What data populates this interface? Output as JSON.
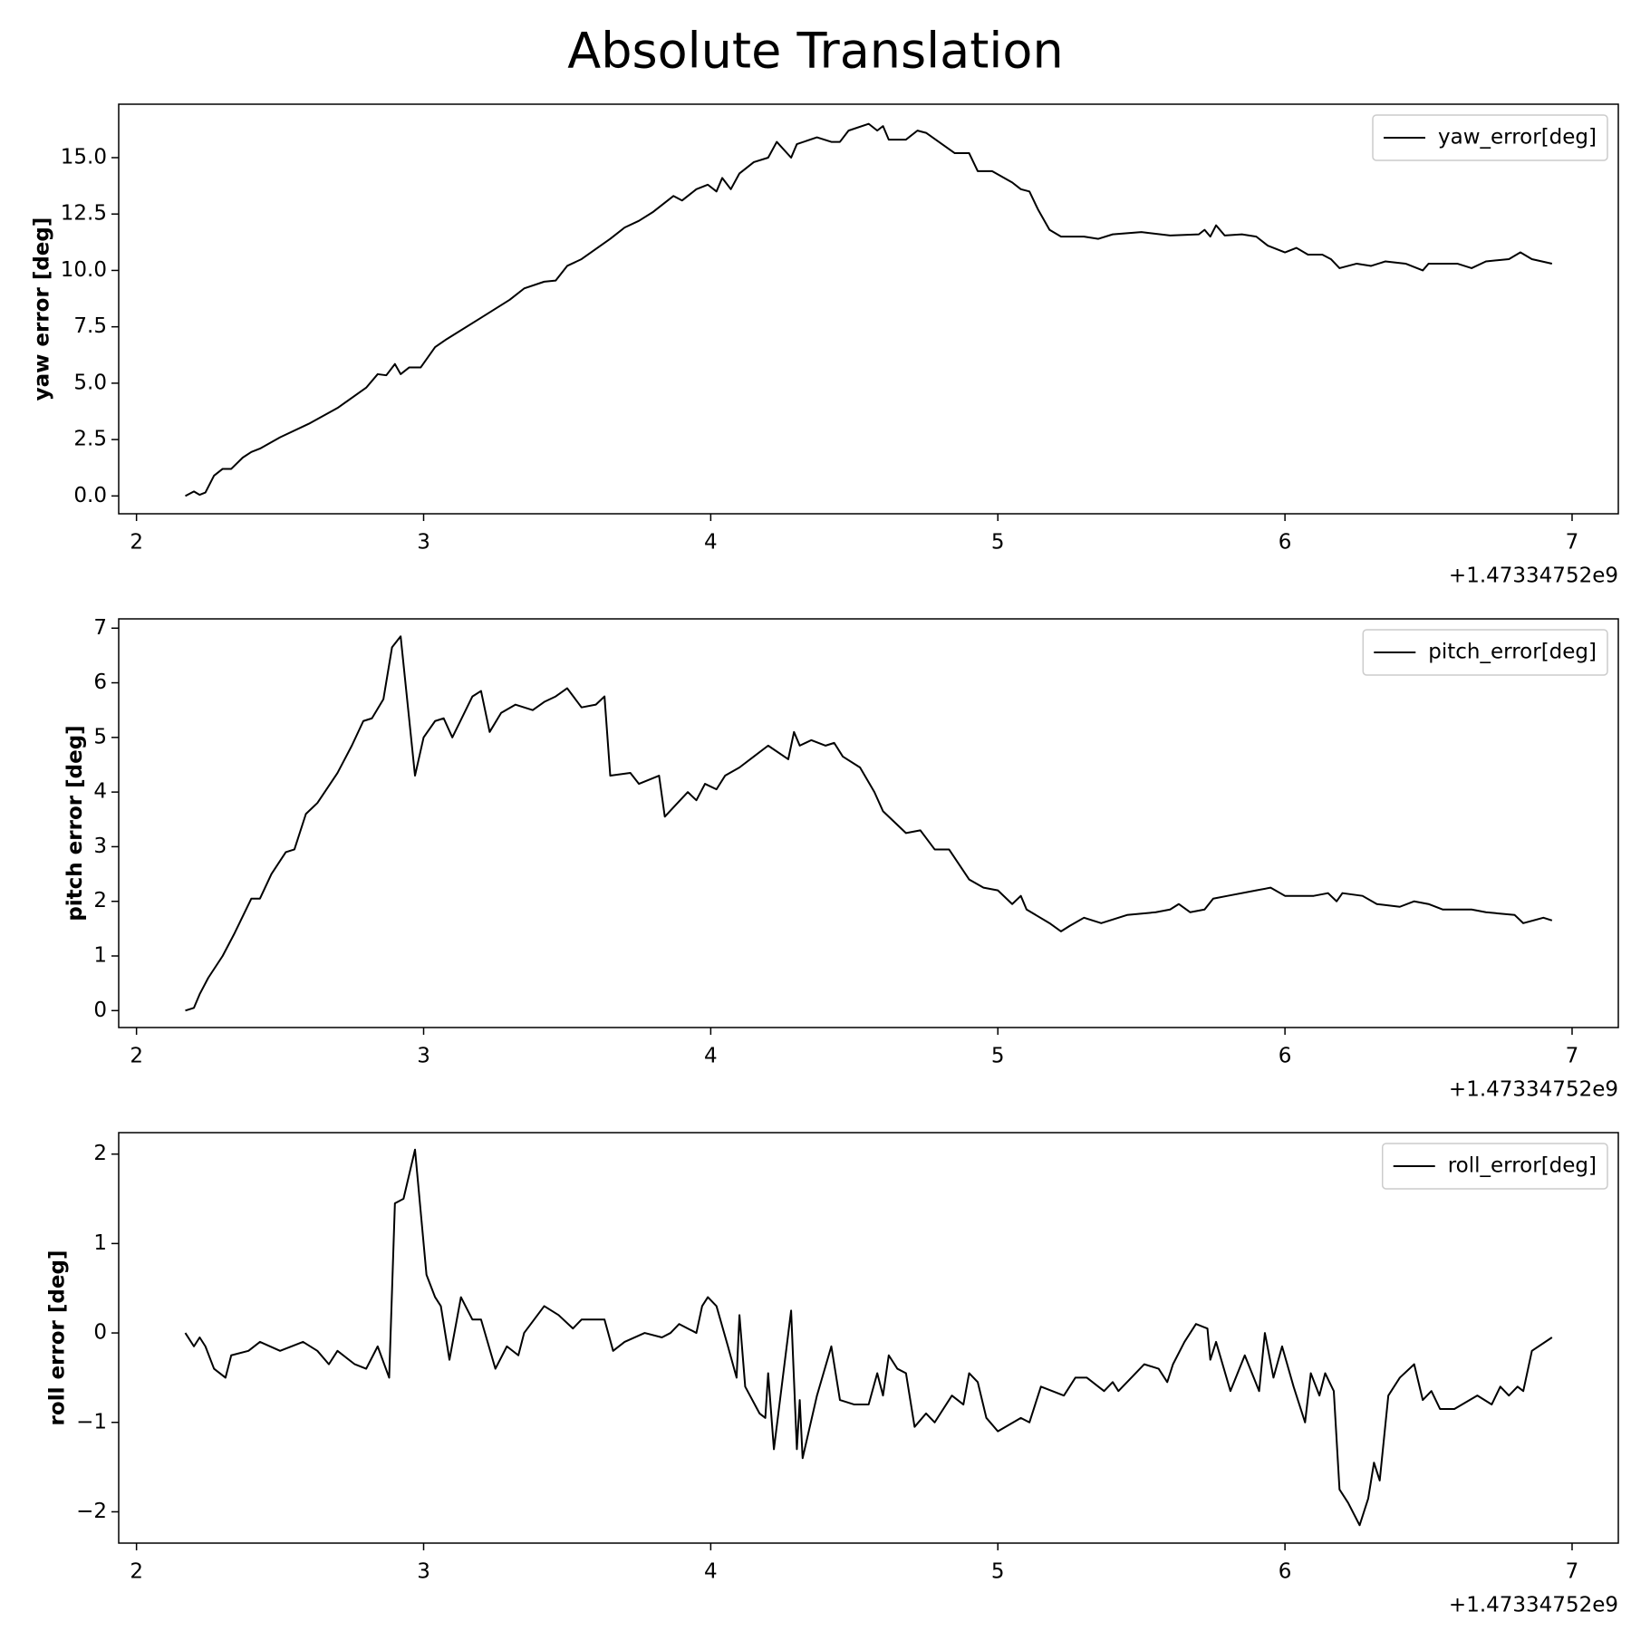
{
  "title": "Absolute Translation",
  "chart_data": [
    {
      "type": "line",
      "ylabel": "yaw error [deg]",
      "x_offset_label": "+1.47334752e9",
      "xlim": [
        1.938,
        7.161
      ],
      "xticks": [
        2,
        3,
        4,
        5,
        6,
        7
      ],
      "ylim": [
        -0.79,
        17.37
      ],
      "yticks": [
        {
          "value": 0,
          "label": "0.0"
        },
        {
          "value": 2.5,
          "label": "2.5"
        },
        {
          "value": 5,
          "label": "5.0"
        },
        {
          "value": 7.5,
          "label": "7.5"
        },
        {
          "value": 10,
          "label": "10.0"
        },
        {
          "value": 12.5,
          "label": "12.5"
        },
        {
          "value": 15,
          "label": "15.0"
        }
      ],
      "legend": "upper right",
      "x": [
        2.17,
        2.2,
        2.22,
        2.24,
        2.27,
        2.3,
        2.33,
        2.37,
        2.4,
        2.43,
        2.5,
        2.6,
        2.7,
        2.8,
        2.84,
        2.87,
        2.9,
        2.92,
        2.95,
        2.99,
        3.04,
        3.08,
        3.2,
        3.3,
        3.35,
        3.42,
        3.46,
        3.5,
        3.55,
        3.65,
        3.7,
        3.75,
        3.8,
        3.87,
        3.9,
        3.95,
        3.99,
        4.02,
        4.04,
        4.07,
        4.1,
        4.15,
        4.2,
        4.23,
        4.28,
        4.3,
        4.37,
        4.42,
        4.45,
        4.48,
        4.55,
        4.58,
        4.6,
        4.62,
        4.68,
        4.72,
        4.75,
        4.85,
        4.9,
        4.93,
        4.98,
        5.05,
        5.08,
        5.11,
        5.14,
        5.18,
        5.22,
        5.3,
        5.35,
        5.4,
        5.5,
        5.6,
        5.7,
        5.72,
        5.74,
        5.76,
        5.79,
        5.85,
        5.9,
        5.94,
        6.0,
        6.04,
        6.08,
        6.13,
        6.16,
        6.19,
        6.25,
        6.3,
        6.35,
        6.42,
        6.48,
        6.5,
        6.6,
        6.65,
        6.7,
        6.78,
        6.82,
        6.86,
        6.93
      ],
      "series": [
        {
          "name": "yaw_error[deg]",
          "color": "#000000",
          "values": [
            0,
            0.2,
            0.05,
            0.15,
            0.9,
            1.2,
            1.2,
            1.7,
            1.95,
            2.1,
            2.6,
            3.2,
            3.9,
            4.8,
            5.4,
            5.35,
            5.85,
            5.4,
            5.7,
            5.7,
            6.6,
            6.95,
            7.9,
            8.7,
            9.2,
            9.5,
            9.55,
            10.2,
            10.5,
            11.4,
            11.9,
            12.2,
            12.6,
            13.3,
            13.1,
            13.6,
            13.8,
            13.5,
            14.1,
            13.6,
            14.3,
            14.8,
            15.0,
            15.7,
            15.0,
            15.6,
            15.9,
            15.7,
            15.7,
            16.2,
            16.5,
            16.2,
            16.4,
            15.8,
            15.8,
            16.2,
            16.1,
            15.2,
            15.2,
            14.4,
            14.4,
            13.9,
            13.6,
            13.5,
            12.7,
            11.8,
            11.5,
            11.5,
            11.4,
            11.6,
            11.7,
            11.55,
            11.6,
            11.8,
            11.5,
            12.0,
            11.55,
            11.6,
            11.5,
            11.1,
            10.8,
            11.0,
            10.7,
            10.7,
            10.5,
            10.1,
            10.3,
            10.2,
            10.4,
            10.3,
            10.0,
            10.3,
            10.3,
            10.1,
            10.4,
            10.5,
            10.8,
            10.5,
            10.3
          ]
        }
      ]
    },
    {
      "type": "line",
      "ylabel": "pitch error [deg]",
      "x_offset_label": "+1.47334752e9",
      "xlim": [
        1.938,
        7.161
      ],
      "xticks": [
        2,
        3,
        4,
        5,
        6,
        7
      ],
      "ylim": [
        -0.31,
        7.17
      ],
      "yticks": [
        0,
        1,
        2,
        3,
        4,
        5,
        6,
        7
      ],
      "legend": "upper right",
      "x": [
        2.17,
        2.2,
        2.22,
        2.25,
        2.3,
        2.34,
        2.4,
        2.43,
        2.47,
        2.52,
        2.55,
        2.59,
        2.63,
        2.7,
        2.75,
        2.79,
        2.82,
        2.86,
        2.89,
        2.92,
        2.97,
        3.0,
        3.04,
        3.07,
        3.1,
        3.17,
        3.2,
        3.23,
        3.27,
        3.32,
        3.38,
        3.42,
        3.46,
        3.5,
        3.55,
        3.6,
        3.63,
        3.65,
        3.72,
        3.75,
        3.82,
        3.84,
        3.92,
        3.95,
        3.98,
        4.02,
        4.05,
        4.1,
        4.15,
        4.2,
        4.27,
        4.29,
        4.31,
        4.35,
        4.4,
        4.43,
        4.46,
        4.52,
        4.57,
        4.6,
        4.68,
        4.73,
        4.78,
        4.83,
        4.9,
        4.95,
        5.0,
        5.05,
        5.08,
        5.1,
        5.18,
        5.22,
        5.25,
        5.3,
        5.36,
        5.45,
        5.55,
        5.6,
        5.63,
        5.67,
        5.72,
        5.75,
        5.8,
        5.9,
        5.95,
        6.0,
        6.1,
        6.15,
        6.18,
        6.2,
        6.27,
        6.32,
        6.4,
        6.45,
        6.5,
        6.55,
        6.65,
        6.7,
        6.8,
        6.83,
        6.9,
        6.93
      ],
      "series": [
        {
          "name": "pitch_error[deg]",
          "color": "#000000",
          "values": [
            0,
            0.05,
            0.3,
            0.6,
            1.0,
            1.4,
            2.05,
            2.05,
            2.5,
            2.9,
            2.95,
            3.6,
            3.8,
            4.35,
            4.85,
            5.3,
            5.35,
            5.7,
            6.65,
            6.85,
            4.3,
            5.0,
            5.3,
            5.35,
            5.0,
            5.75,
            5.85,
            5.1,
            5.45,
            5.6,
            5.5,
            5.65,
            5.75,
            5.9,
            5.55,
            5.6,
            5.75,
            4.3,
            4.35,
            4.15,
            4.3,
            3.55,
            4.0,
            3.85,
            4.15,
            4.05,
            4.3,
            4.45,
            4.65,
            4.85,
            4.6,
            5.1,
            4.85,
            4.95,
            4.85,
            4.9,
            4.65,
            4.45,
            4.0,
            3.65,
            3.25,
            3.3,
            2.95,
            2.95,
            2.4,
            2.25,
            2.2,
            1.95,
            2.1,
            1.85,
            1.6,
            1.45,
            1.55,
            1.7,
            1.6,
            1.75,
            1.8,
            1.85,
            1.95,
            1.8,
            1.85,
            2.05,
            2.1,
            2.2,
            2.25,
            2.1,
            2.1,
            2.15,
            2.0,
            2.15,
            2.1,
            1.95,
            1.9,
            2.0,
            1.95,
            1.85,
            1.85,
            1.8,
            1.75,
            1.6,
            1.7,
            1.65
          ]
        }
      ]
    },
    {
      "type": "line",
      "ylabel": "roll error [deg]",
      "x_offset_label": "+1.47334752e9",
      "xlim": [
        1.938,
        7.161
      ],
      "xticks": [
        2,
        3,
        4,
        5,
        6,
        7
      ],
      "ylim": [
        -2.35,
        2.24
      ],
      "yticks": [
        {
          "value": -2,
          "label": "−2"
        },
        {
          "value": -1,
          "label": "−1"
        },
        0,
        1,
        2
      ],
      "legend": "upper right",
      "x": [
        2.17,
        2.2,
        2.22,
        2.24,
        2.27,
        2.31,
        2.33,
        2.39,
        2.43,
        2.5,
        2.58,
        2.63,
        2.67,
        2.7,
        2.76,
        2.8,
        2.84,
        2.88,
        2.9,
        2.93,
        2.97,
        3.01,
        3.04,
        3.06,
        3.09,
        3.13,
        3.17,
        3.2,
        3.25,
        3.29,
        3.33,
        3.35,
        3.42,
        3.47,
        3.52,
        3.55,
        3.6,
        3.63,
        3.66,
        3.7,
        3.77,
        3.83,
        3.86,
        3.89,
        3.95,
        3.97,
        3.99,
        4.02,
        4.06,
        4.09,
        4.1,
        4.12,
        4.17,
        4.19,
        4.2,
        4.22,
        4.28,
        4.3,
        4.31,
        4.32,
        4.37,
        4.42,
        4.45,
        4.5,
        4.55,
        4.58,
        4.6,
        4.62,
        4.65,
        4.68,
        4.71,
        4.75,
        4.78,
        4.84,
        4.88,
        4.9,
        4.93,
        4.96,
        5.0,
        5.08,
        5.11,
        5.15,
        5.23,
        5.27,
        5.31,
        5.35,
        5.37,
        5.4,
        5.42,
        5.51,
        5.56,
        5.59,
        5.61,
        5.65,
        5.69,
        5.73,
        5.74,
        5.76,
        5.81,
        5.86,
        5.91,
        5.93,
        5.96,
        5.99,
        6.03,
        6.07,
        6.09,
        6.12,
        6.14,
        6.17,
        6.19,
        6.22,
        6.26,
        6.29,
        6.31,
        6.33,
        6.36,
        6.4,
        6.45,
        6.48,
        6.51,
        6.54,
        6.59,
        6.67,
        6.72,
        6.75,
        6.78,
        6.81,
        6.83,
        6.86,
        6.93
      ],
      "series": [
        {
          "name": "roll_error[deg]",
          "color": "#000000",
          "values": [
            0,
            -0.15,
            -0.05,
            -0.15,
            -0.4,
            -0.5,
            -0.25,
            -0.2,
            -0.1,
            -0.2,
            -0.1,
            -0.2,
            -0.35,
            -0.2,
            -0.35,
            -0.4,
            -0.15,
            -0.5,
            1.45,
            1.5,
            2.05,
            0.65,
            0.4,
            0.3,
            -0.3,
            0.4,
            0.15,
            0.15,
            -0.4,
            -0.15,
            -0.25,
            0.0,
            0.3,
            0.2,
            0.05,
            0.15,
            0.15,
            0.15,
            -0.2,
            -0.1,
            0.0,
            -0.05,
            0.0,
            0.1,
            0.0,
            0.3,
            0.4,
            0.3,
            -0.15,
            -0.5,
            0.2,
            -0.6,
            -0.9,
            -0.95,
            -0.45,
            -1.3,
            0.25,
            -1.3,
            -0.75,
            -1.4,
            -0.7,
            -0.15,
            -0.75,
            -0.8,
            -0.8,
            -0.45,
            -0.7,
            -0.25,
            -0.4,
            -0.45,
            -1.05,
            -0.9,
            -1.0,
            -0.7,
            -0.8,
            -0.45,
            -0.55,
            -0.95,
            -1.1,
            -0.95,
            -1.0,
            -0.6,
            -0.7,
            -0.5,
            -0.5,
            -0.6,
            -0.65,
            -0.55,
            -0.65,
            -0.35,
            -0.4,
            -0.55,
            -0.35,
            -0.1,
            0.1,
            0.05,
            -0.3,
            -0.1,
            -0.65,
            -0.25,
            -0.65,
            0.0,
            -0.5,
            -0.15,
            -0.6,
            -1.0,
            -0.45,
            -0.7,
            -0.45,
            -0.65,
            -1.75,
            -1.9,
            -2.15,
            -1.85,
            -1.45,
            -1.65,
            -0.7,
            -0.5,
            -0.35,
            -0.75,
            -0.65,
            -0.85,
            -0.85,
            -0.7,
            -0.8,
            -0.6,
            -0.7,
            -0.6,
            -0.65,
            -0.2,
            -0.05
          ]
        }
      ]
    }
  ]
}
